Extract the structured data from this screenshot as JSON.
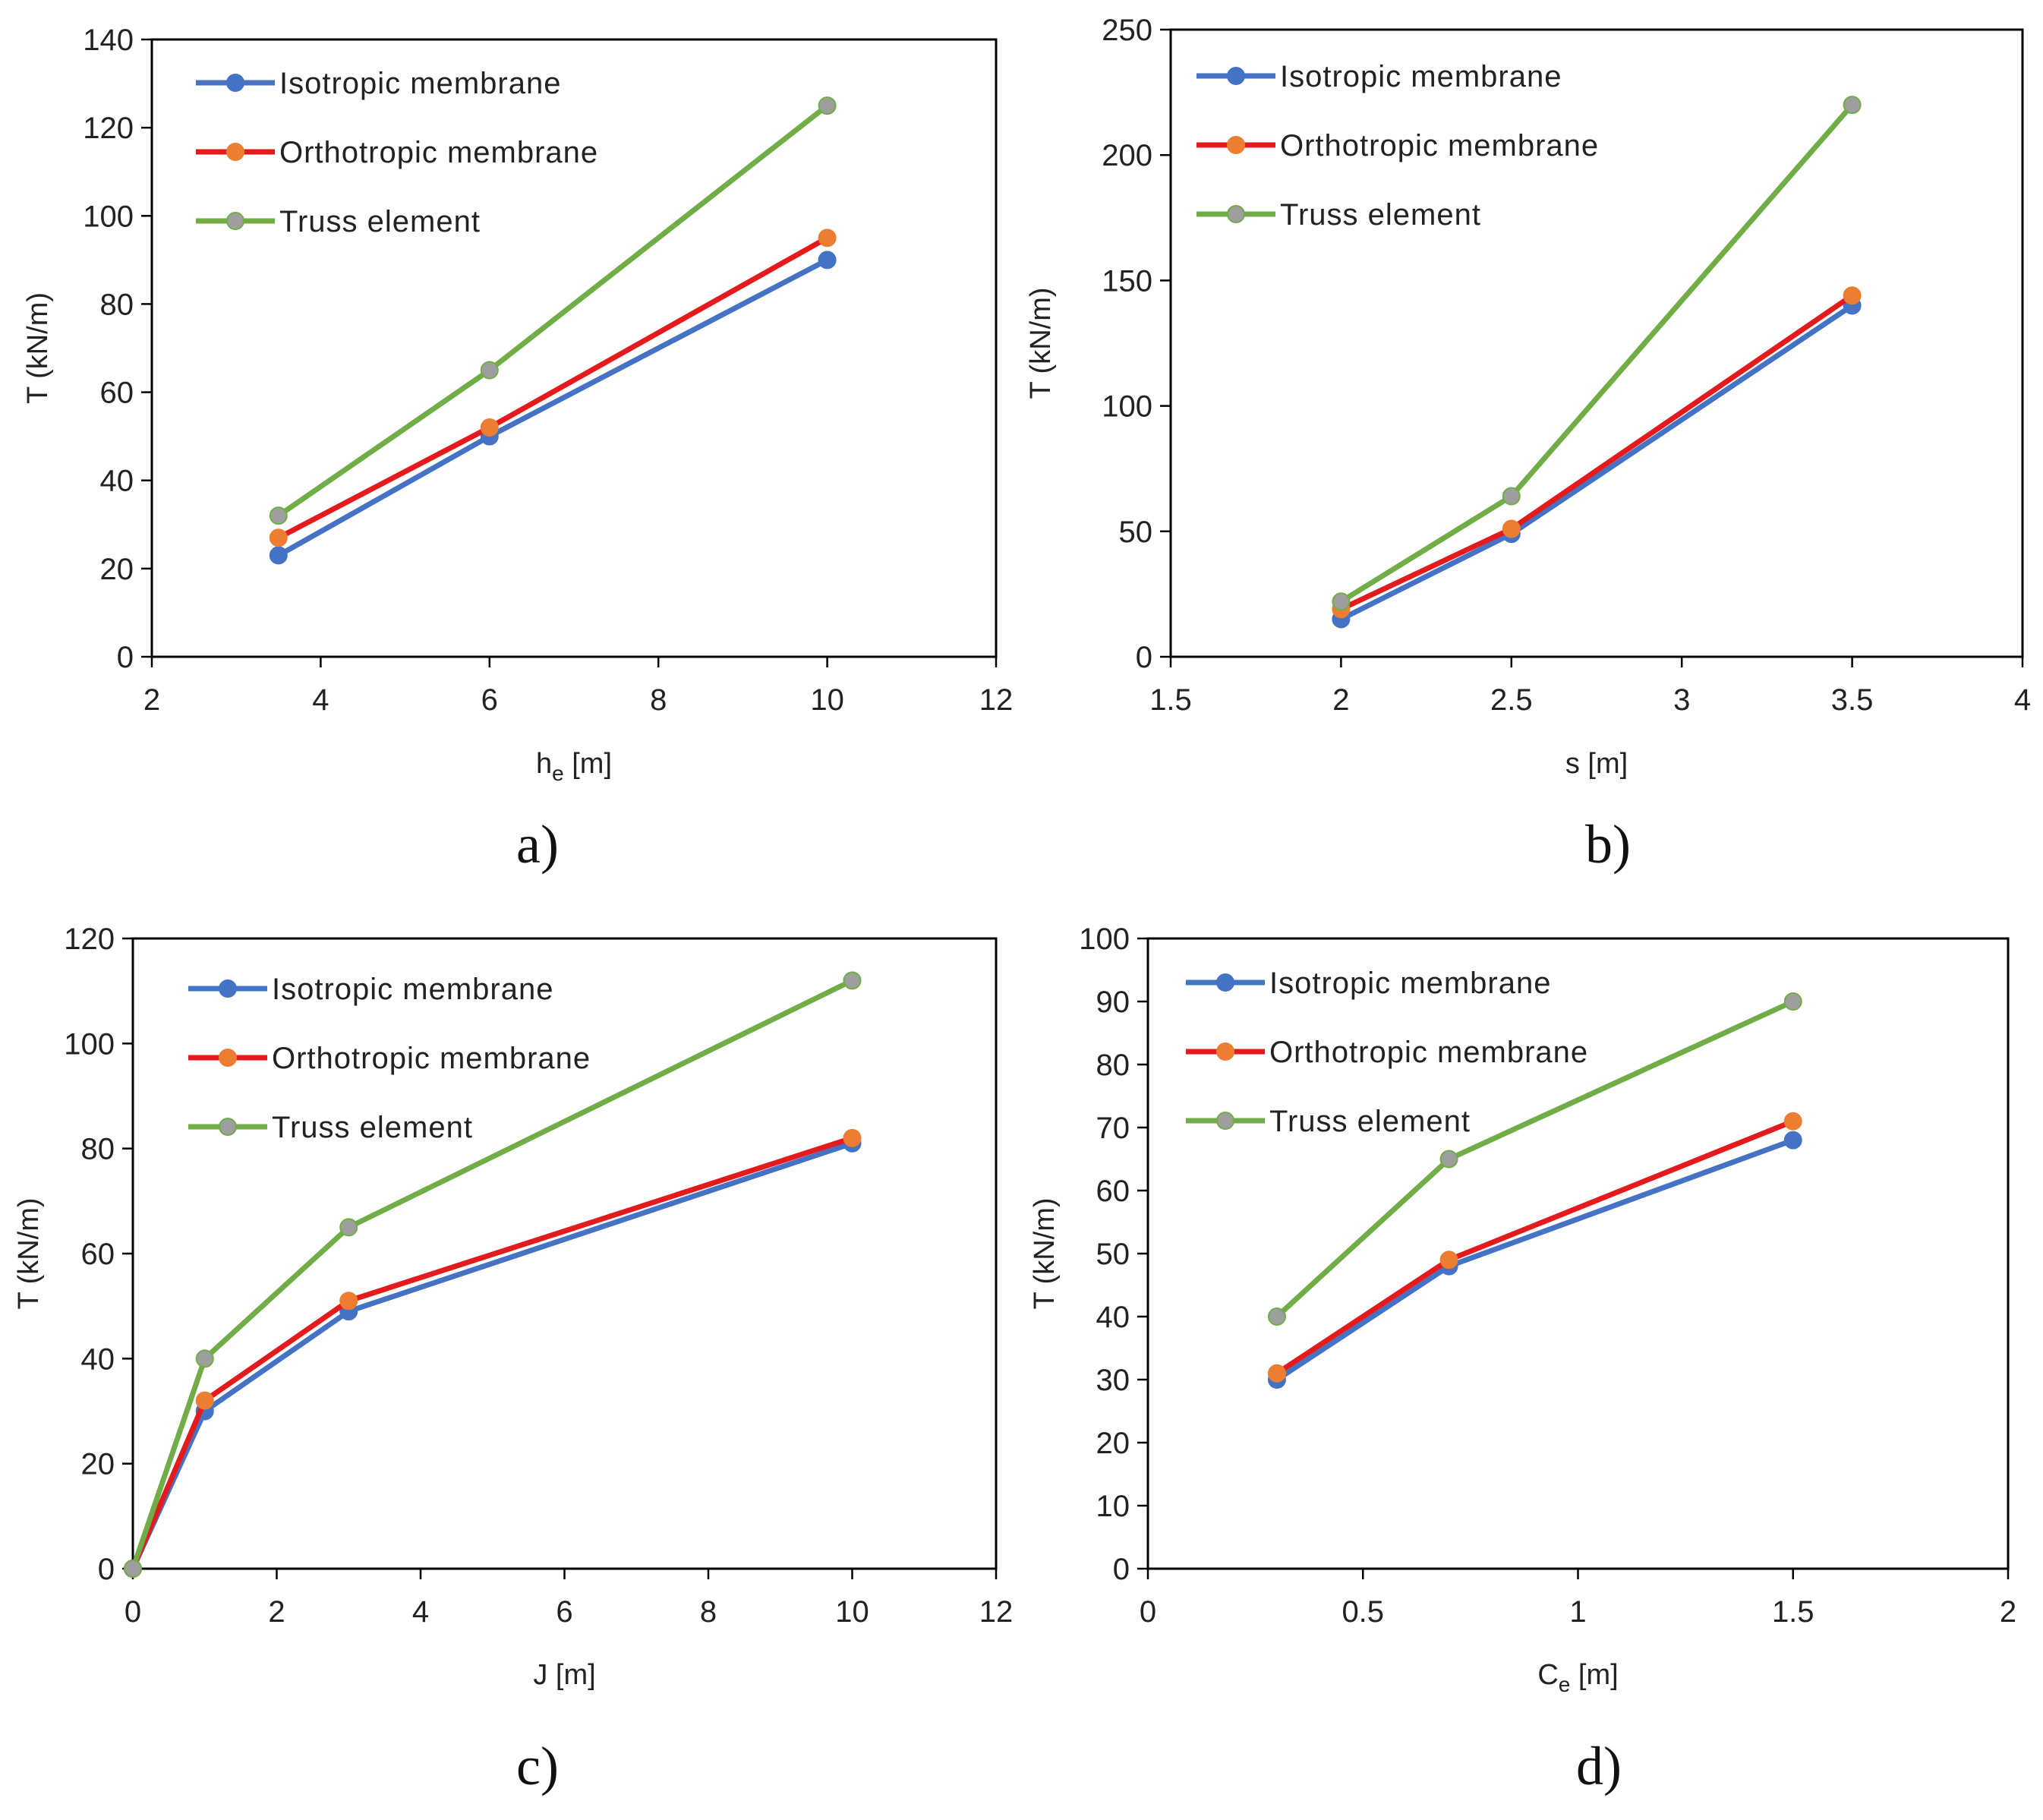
{
  "colors": {
    "isotropic": "#4472C4",
    "isotropic_marker": "#4472C4",
    "orthotropic": "#E41A1C",
    "orthotropic_marker": "#ED7D31",
    "truss": "#70AD47",
    "truss_marker": "#9E9E9E"
  },
  "chart_data": [
    {
      "id": "a",
      "panel_label": "a)",
      "type": "line",
      "xlabel_main": "h",
      "xlabel_sub": "e",
      "xlabel_unit": " [m]",
      "ylabel": "T (kN/m)",
      "xlim": [
        2,
        12
      ],
      "ylim": [
        0,
        140
      ],
      "xticks": [
        2,
        4,
        6,
        8,
        10,
        12
      ],
      "yticks": [
        0,
        20,
        40,
        60,
        80,
        100,
        120,
        140
      ],
      "xtick_labels": [
        "2",
        "4",
        "6",
        "8",
        "10",
        "12"
      ],
      "ytick_labels": [
        "0",
        "20",
        "40",
        "60",
        "80",
        "100",
        "120",
        "140"
      ],
      "legend_position": "top-left",
      "series": [
        {
          "name": "Isotropic membrane",
          "key": "isotropic",
          "x": [
            3.5,
            6,
            10
          ],
          "y": [
            23,
            50,
            90
          ]
        },
        {
          "name": "Orthotropic membrane",
          "key": "orthotropic",
          "x": [
            3.5,
            6,
            10
          ],
          "y": [
            27,
            52,
            95
          ]
        },
        {
          "name": "Truss element",
          "key": "truss",
          "x": [
            3.5,
            6,
            10
          ],
          "y": [
            32,
            65,
            125
          ]
        }
      ]
    },
    {
      "id": "b",
      "panel_label": "b)",
      "type": "line",
      "xlabel_main": "s",
      "xlabel_sub": "",
      "xlabel_unit": " [m]",
      "ylabel": "T (kN/m)",
      "xlim": [
        1.5,
        4
      ],
      "ylim": [
        0,
        250
      ],
      "xticks": [
        1.5,
        2,
        2.5,
        3,
        3.5,
        4
      ],
      "yticks": [
        0,
        50,
        100,
        150,
        200,
        250
      ],
      "xtick_labels": [
        "1.5",
        "2",
        "2.5",
        "3",
        "3.5",
        "4"
      ],
      "ytick_labels": [
        "0",
        "50",
        "100",
        "150",
        "200",
        "250"
      ],
      "legend_position": "top-left",
      "series": [
        {
          "name": "Isotropic membrane",
          "key": "isotropic",
          "x": [
            2,
            2.5,
            3.5
          ],
          "y": [
            15,
            49,
            140
          ]
        },
        {
          "name": "Orthotropic membrane",
          "key": "orthotropic",
          "x": [
            2,
            2.5,
            3.5
          ],
          "y": [
            19,
            51,
            144
          ]
        },
        {
          "name": "Truss element",
          "key": "truss",
          "x": [
            2,
            2.5,
            3.5
          ],
          "y": [
            22,
            64,
            220
          ]
        }
      ]
    },
    {
      "id": "c",
      "panel_label": "c)",
      "type": "line",
      "xlabel_main": "J",
      "xlabel_sub": "",
      "xlabel_unit": " [m]",
      "ylabel": "T (kN/m)",
      "xlim": [
        0,
        12
      ],
      "ylim": [
        0,
        120
      ],
      "xticks": [
        0,
        2,
        4,
        6,
        8,
        10,
        12
      ],
      "yticks": [
        0,
        20,
        40,
        60,
        80,
        100,
        120
      ],
      "xtick_labels": [
        "0",
        "2",
        "4",
        "6",
        "8",
        "10",
        "12"
      ],
      "ytick_labels": [
        "0",
        "20",
        "40",
        "60",
        "80",
        "100",
        "120"
      ],
      "legend_position": "top-left",
      "series": [
        {
          "name": "Isotropic membrane",
          "key": "isotropic",
          "x": [
            0,
            1,
            3,
            10
          ],
          "y": [
            0,
            30,
            49,
            81
          ]
        },
        {
          "name": "Orthotropic membrane",
          "key": "orthotropic",
          "x": [
            0,
            1,
            3,
            10
          ],
          "y": [
            0,
            32,
            51,
            82
          ]
        },
        {
          "name": "Truss element",
          "key": "truss",
          "x": [
            0,
            1,
            3,
            10
          ],
          "y": [
            0,
            40,
            65,
            112
          ]
        }
      ]
    },
    {
      "id": "d",
      "panel_label": "d)",
      "type": "line",
      "xlabel_main": "C",
      "xlabel_sub": "e",
      "xlabel_unit": " [m]",
      "ylabel": "T (kN/m)",
      "xlim": [
        0,
        2
      ],
      "ylim": [
        0,
        100
      ],
      "xticks": [
        0,
        0.5,
        1,
        1.5,
        2
      ],
      "yticks": [
        0,
        10,
        20,
        30,
        40,
        50,
        60,
        70,
        80,
        90,
        100
      ],
      "xtick_labels": [
        "0",
        "0.5",
        "1",
        "1.5",
        "2"
      ],
      "ytick_labels": [
        "0",
        "10",
        "20",
        "30",
        "40",
        "50",
        "60",
        "70",
        "80",
        "90",
        "100"
      ],
      "legend_position": "top-left",
      "series": [
        {
          "name": "Isotropic membrane",
          "key": "isotropic",
          "x": [
            0.3,
            0.7,
            1.5
          ],
          "y": [
            30,
            48,
            68
          ]
        },
        {
          "name": "Orthotropic membrane",
          "key": "orthotropic",
          "x": [
            0.3,
            0.7,
            1.5
          ],
          "y": [
            31,
            49,
            71
          ]
        },
        {
          "name": "Truss element",
          "key": "truss",
          "x": [
            0.3,
            0.7,
            1.5
          ],
          "y": [
            40,
            65,
            90
          ]
        }
      ]
    }
  ]
}
